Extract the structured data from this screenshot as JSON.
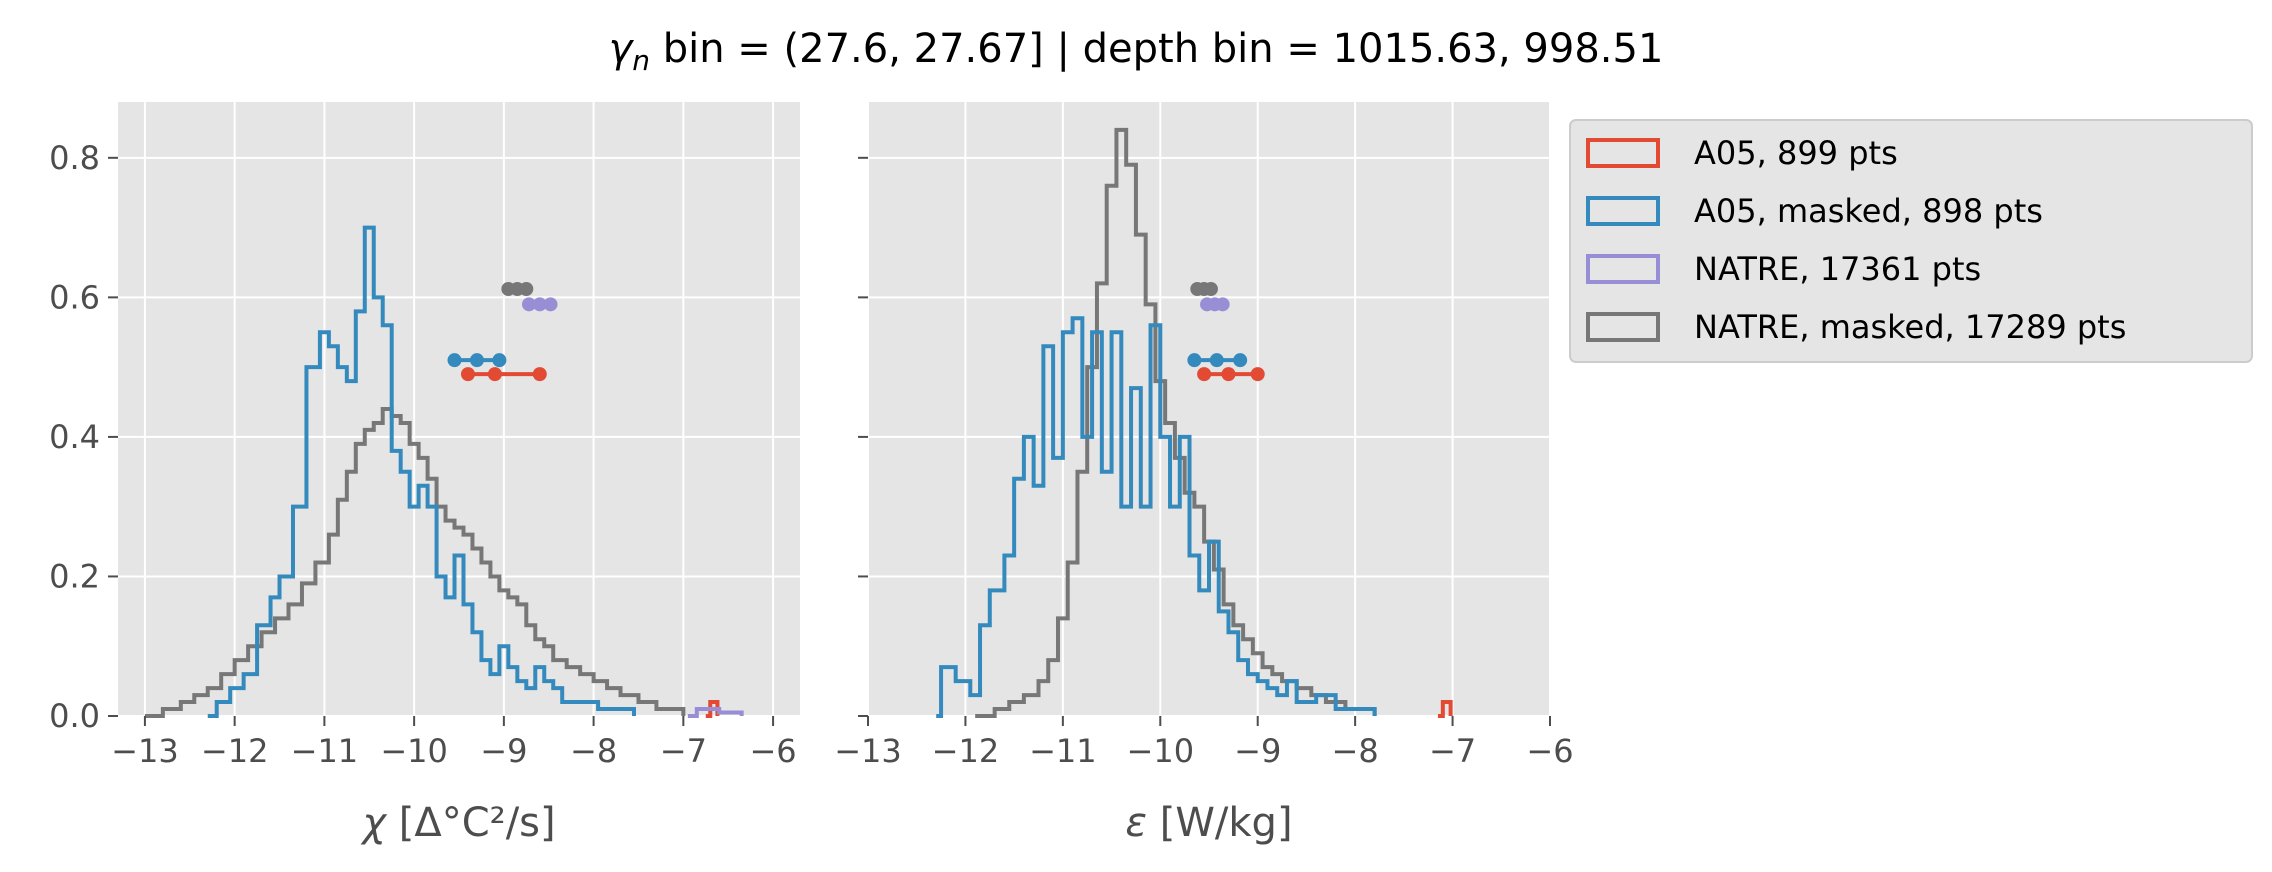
{
  "figure": {
    "title_var": "γ",
    "title_sub": "n",
    "title_rest": " bin = (27.6, 27.67] | depth bin = 1015.63, 998.51"
  },
  "colors": {
    "A05": "#E24A33",
    "A05_masked": "#348ABD",
    "NATRE": "#988ED5",
    "NATRE_masked": "#777777",
    "axes_bg": "#E5E5E5",
    "grid": "#FFFFFF"
  },
  "legend": {
    "placement": "outside upper right",
    "entries": [
      {
        "key": "A05",
        "label": "A05, 899 pts"
      },
      {
        "key": "A05_masked",
        "label": "A05, masked,  898 pts"
      },
      {
        "key": "NATRE",
        "label": "NATRE, 17361 pts"
      },
      {
        "key": "NATRE_masked",
        "label": "NATRE, masked,  17289 pts"
      }
    ]
  },
  "chart_data": [
    {
      "type": "histogram",
      "xlabel": "χ [Δ°C²/s]",
      "ylabel": "",
      "xlim": [
        -13.3,
        -5.7
      ],
      "ylim": [
        0,
        0.88
      ],
      "xticks": [
        -13,
        -12,
        -11,
        -10,
        -9,
        -8,
        -7,
        -6
      ],
      "xtick_labels": [
        "−13",
        "−12",
        "−11",
        "−10",
        "−9",
        "−8",
        "−7",
        "−6"
      ],
      "yticks": [
        0.0,
        0.2,
        0.4,
        0.6,
        0.8
      ],
      "ytick_labels": [
        "0.0",
        "0.2",
        "0.4",
        "0.6",
        "0.8"
      ],
      "grid": true,
      "series": [
        {
          "name": "NATRE, masked,  17289 pts",
          "key": "NATRE_masked",
          "points": [
            [
              -13.0,
              0.0
            ],
            [
              -12.8,
              0.01
            ],
            [
              -12.6,
              0.02
            ],
            [
              -12.45,
              0.03
            ],
            [
              -12.3,
              0.04
            ],
            [
              -12.15,
              0.06
            ],
            [
              -12.0,
              0.08
            ],
            [
              -11.85,
              0.1
            ],
            [
              -11.7,
              0.12
            ],
            [
              -11.55,
              0.14
            ],
            [
              -11.4,
              0.16
            ],
            [
              -11.25,
              0.19
            ],
            [
              -11.1,
              0.22
            ],
            [
              -10.95,
              0.26
            ],
            [
              -10.85,
              0.31
            ],
            [
              -10.75,
              0.35
            ],
            [
              -10.65,
              0.39
            ],
            [
              -10.55,
              0.41
            ],
            [
              -10.45,
              0.42
            ],
            [
              -10.35,
              0.44
            ],
            [
              -10.25,
              0.43
            ],
            [
              -10.15,
              0.42
            ],
            [
              -10.05,
              0.39
            ],
            [
              -9.95,
              0.37
            ],
            [
              -9.85,
              0.34
            ],
            [
              -9.75,
              0.3
            ],
            [
              -9.65,
              0.28
            ],
            [
              -9.55,
              0.27
            ],
            [
              -9.45,
              0.26
            ],
            [
              -9.35,
              0.24
            ],
            [
              -9.25,
              0.22
            ],
            [
              -9.15,
              0.2
            ],
            [
              -9.05,
              0.18
            ],
            [
              -8.95,
              0.17
            ],
            [
              -8.85,
              0.16
            ],
            [
              -8.75,
              0.13
            ],
            [
              -8.65,
              0.11
            ],
            [
              -8.55,
              0.1
            ],
            [
              -8.45,
              0.08
            ],
            [
              -8.3,
              0.07
            ],
            [
              -8.15,
              0.06
            ],
            [
              -8.0,
              0.05
            ],
            [
              -7.85,
              0.04
            ],
            [
              -7.7,
              0.03
            ],
            [
              -7.5,
              0.02
            ],
            [
              -7.3,
              0.01
            ],
            [
              -7.0,
              0.0
            ]
          ]
        },
        {
          "name": "A05, masked,  898 pts",
          "key": "A05_masked",
          "points": [
            [
              -12.3,
              0.0
            ],
            [
              -12.2,
              0.02
            ],
            [
              -12.05,
              0.04
            ],
            [
              -11.9,
              0.06
            ],
            [
              -11.75,
              0.13
            ],
            [
              -11.6,
              0.17
            ],
            [
              -11.5,
              0.2
            ],
            [
              -11.35,
              0.3
            ],
            [
              -11.2,
              0.5
            ],
            [
              -11.05,
              0.55
            ],
            [
              -10.95,
              0.53
            ],
            [
              -10.85,
              0.5
            ],
            [
              -10.75,
              0.48
            ],
            [
              -10.65,
              0.58
            ],
            [
              -10.55,
              0.7
            ],
            [
              -10.45,
              0.6
            ],
            [
              -10.35,
              0.56
            ],
            [
              -10.25,
              0.38
            ],
            [
              -10.15,
              0.35
            ],
            [
              -10.05,
              0.3
            ],
            [
              -9.95,
              0.33
            ],
            [
              -9.85,
              0.3
            ],
            [
              -9.75,
              0.2
            ],
            [
              -9.65,
              0.17
            ],
            [
              -9.55,
              0.23
            ],
            [
              -9.45,
              0.16
            ],
            [
              -9.35,
              0.12
            ],
            [
              -9.25,
              0.08
            ],
            [
              -9.15,
              0.06
            ],
            [
              -9.05,
              0.1
            ],
            [
              -8.95,
              0.07
            ],
            [
              -8.85,
              0.05
            ],
            [
              -8.75,
              0.04
            ],
            [
              -8.65,
              0.07
            ],
            [
              -8.55,
              0.05
            ],
            [
              -8.45,
              0.04
            ],
            [
              -8.35,
              0.02
            ],
            [
              -8.15,
              0.02
            ],
            [
              -7.95,
              0.01
            ],
            [
              -7.75,
              0.01
            ],
            [
              -7.55,
              0.0
            ]
          ]
        },
        {
          "name": "A05, 899 pts",
          "key": "A05",
          "points": [
            [
              -6.75,
              0.0
            ],
            [
              -6.7,
              0.02
            ],
            [
              -6.62,
              0.0
            ]
          ]
        },
        {
          "name": "NATRE, 17361 pts",
          "key": "NATRE",
          "points": [
            [
              -6.95,
              0.0
            ],
            [
              -6.85,
              0.01
            ],
            [
              -6.6,
              0.005
            ],
            [
              -6.35,
              0.0
            ]
          ]
        }
      ],
      "percentile_markers": [
        {
          "key": "NATRE_masked",
          "y": 0.612,
          "x": [
            -8.95,
            -8.85,
            -8.75
          ]
        },
        {
          "key": "NATRE",
          "y": 0.59,
          "x": [
            -8.72,
            -8.6,
            -8.48
          ]
        },
        {
          "key": "A05_masked",
          "y": 0.51,
          "x": [
            -9.55,
            -9.3,
            -9.05
          ]
        },
        {
          "key": "A05",
          "y": 0.49,
          "x": [
            -9.4,
            -9.1,
            -8.6
          ]
        }
      ]
    },
    {
      "type": "histogram",
      "xlabel": "ε [W/kg]",
      "ylabel": "",
      "xlim": [
        -13.0,
        -6.0
      ],
      "ylim": [
        0,
        0.88
      ],
      "xticks": [
        -13,
        -12,
        -11,
        -10,
        -9,
        -8,
        -7,
        -6
      ],
      "xtick_labels": [
        "−13",
        "−12",
        "−11",
        "−10",
        "−9",
        "−8",
        "−7",
        "−6"
      ],
      "yticks": [
        0.0,
        0.2,
        0.4,
        0.6,
        0.8
      ],
      "ytick_labels": [
        "",
        "",
        "",
        "",
        ""
      ],
      "grid": true,
      "series": [
        {
          "name": "NATRE, masked,  17289 pts",
          "key": "NATRE_masked",
          "points": [
            [
              -11.9,
              0.0
            ],
            [
              -11.7,
              0.01
            ],
            [
              -11.55,
              0.02
            ],
            [
              -11.4,
              0.03
            ],
            [
              -11.25,
              0.05
            ],
            [
              -11.15,
              0.08
            ],
            [
              -11.05,
              0.14
            ],
            [
              -10.95,
              0.22
            ],
            [
              -10.85,
              0.35
            ],
            [
              -10.75,
              0.5
            ],
            [
              -10.65,
              0.62
            ],
            [
              -10.55,
              0.76
            ],
            [
              -10.45,
              0.84
            ],
            [
              -10.35,
              0.79
            ],
            [
              -10.25,
              0.69
            ],
            [
              -10.15,
              0.59
            ],
            [
              -10.05,
              0.48
            ],
            [
              -9.95,
              0.42
            ],
            [
              -9.85,
              0.37
            ],
            [
              -9.75,
              0.32
            ],
            [
              -9.65,
              0.3
            ],
            [
              -9.55,
              0.25
            ],
            [
              -9.45,
              0.21
            ],
            [
              -9.35,
              0.16
            ],
            [
              -9.25,
              0.13
            ],
            [
              -9.15,
              0.11
            ],
            [
              -9.05,
              0.09
            ],
            [
              -8.95,
              0.07
            ],
            [
              -8.85,
              0.06
            ],
            [
              -8.75,
              0.05
            ],
            [
              -8.6,
              0.04
            ],
            [
              -8.45,
              0.03
            ],
            [
              -8.3,
              0.02
            ],
            [
              -8.1,
              0.01
            ],
            [
              -7.8,
              0.0
            ]
          ]
        },
        {
          "name": "A05, masked,  898 pts",
          "key": "A05_masked",
          "points": [
            [
              -12.3,
              0.0
            ],
            [
              -12.25,
              0.07
            ],
            [
              -12.1,
              0.05
            ],
            [
              -11.95,
              0.03
            ],
            [
              -11.85,
              0.13
            ],
            [
              -11.75,
              0.18
            ],
            [
              -11.6,
              0.23
            ],
            [
              -11.5,
              0.34
            ],
            [
              -11.4,
              0.4
            ],
            [
              -11.3,
              0.33
            ],
            [
              -11.2,
              0.53
            ],
            [
              -11.1,
              0.37
            ],
            [
              -11.0,
              0.55
            ],
            [
              -10.9,
              0.57
            ],
            [
              -10.8,
              0.4
            ],
            [
              -10.7,
              0.55
            ],
            [
              -10.6,
              0.35
            ],
            [
              -10.5,
              0.55
            ],
            [
              -10.4,
              0.3
            ],
            [
              -10.3,
              0.47
            ],
            [
              -10.2,
              0.3
            ],
            [
              -10.1,
              0.56
            ],
            [
              -10.0,
              0.4
            ],
            [
              -9.9,
              0.3
            ],
            [
              -9.8,
              0.4
            ],
            [
              -9.7,
              0.23
            ],
            [
              -9.6,
              0.18
            ],
            [
              -9.5,
              0.25
            ],
            [
              -9.4,
              0.15
            ],
            [
              -9.3,
              0.12
            ],
            [
              -9.2,
              0.08
            ],
            [
              -9.1,
              0.06
            ],
            [
              -9.0,
              0.05
            ],
            [
              -8.9,
              0.04
            ],
            [
              -8.8,
              0.03
            ],
            [
              -8.7,
              0.05
            ],
            [
              -8.6,
              0.02
            ],
            [
              -8.4,
              0.03
            ],
            [
              -8.2,
              0.01
            ],
            [
              -7.8,
              0.0
            ]
          ]
        },
        {
          "name": "A05, 899 pts",
          "key": "A05",
          "points": [
            [
              -7.15,
              0.0
            ],
            [
              -7.1,
              0.02
            ],
            [
              -7.02,
              0.0
            ]
          ]
        }
      ],
      "percentile_markers": [
        {
          "key": "NATRE_masked",
          "y": 0.612,
          "x": [
            -9.62,
            -9.55,
            -9.48
          ]
        },
        {
          "key": "NATRE",
          "y": 0.59,
          "x": [
            -9.52,
            -9.44,
            -9.36
          ]
        },
        {
          "key": "A05_masked",
          "y": 0.51,
          "x": [
            -9.65,
            -9.42,
            -9.18
          ]
        },
        {
          "key": "A05",
          "y": 0.49,
          "x": [
            -9.55,
            -9.3,
            -9.0
          ]
        }
      ]
    }
  ]
}
